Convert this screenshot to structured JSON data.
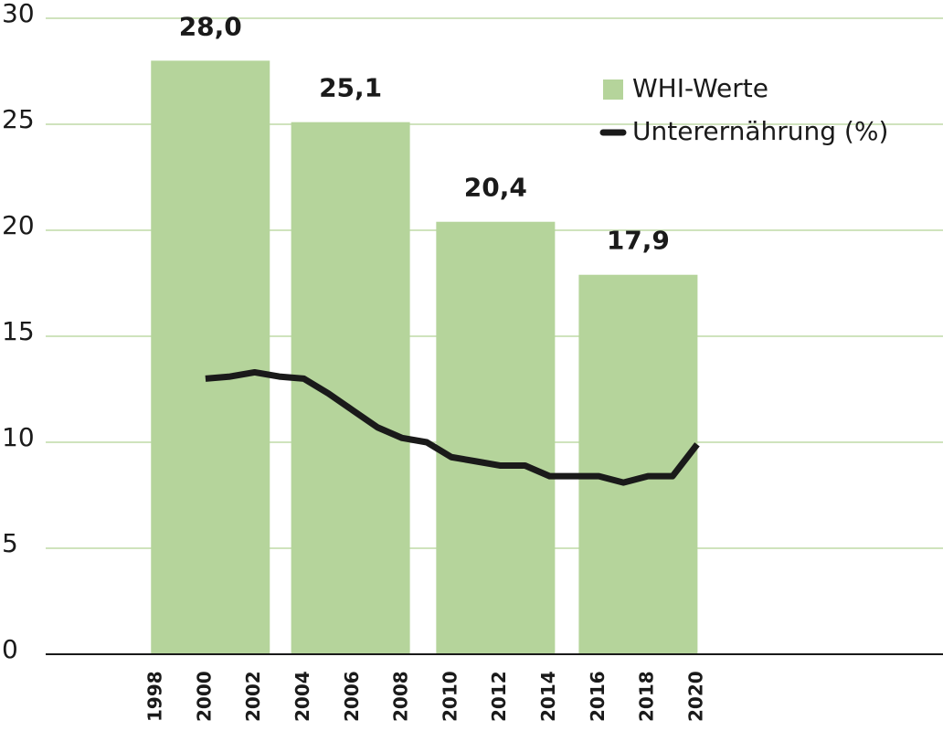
{
  "chart_data": {
    "type": "combo",
    "series": [
      {
        "name": "WHI-Werte",
        "type": "bar",
        "color": "#b5d49b",
        "x": [
          2000.2,
          2005.9,
          2011.8,
          2017.6
        ],
        "values": [
          28.0,
          25.1,
          20.4,
          17.9
        ],
        "value_labels": [
          "28,0",
          "25,1",
          "20,4",
          "17,9"
        ]
      },
      {
        "name": "Unterernährung (%)",
        "type": "line",
        "color": "#1a1a1a",
        "x": [
          2000,
          2001,
          2002,
          2003,
          2004,
          2005,
          2006,
          2007,
          2008,
          2009,
          2010,
          2011,
          2012,
          2013,
          2014,
          2015,
          2016,
          2017,
          2018,
          2019,
          2020
        ],
        "values": [
          13.0,
          13.1,
          13.3,
          13.1,
          13.0,
          12.3,
          11.5,
          10.7,
          10.2,
          10.0,
          9.3,
          9.1,
          8.9,
          8.9,
          8.4,
          8.4,
          8.4,
          8.1,
          8.4,
          8.4,
          9.9
        ]
      }
    ],
    "xlim": [
      1993.5,
      2030
    ],
    "xticks": [
      1998,
      2000,
      2002,
      2004,
      2006,
      2008,
      2010,
      2012,
      2014,
      2016,
      2018,
      2020
    ],
    "ylim": [
      0,
      30
    ],
    "yticks": [
      0,
      5,
      10,
      15,
      20,
      25,
      30
    ],
    "grid": true,
    "grid_color": "#cfe3bd",
    "legend": "upper right"
  }
}
